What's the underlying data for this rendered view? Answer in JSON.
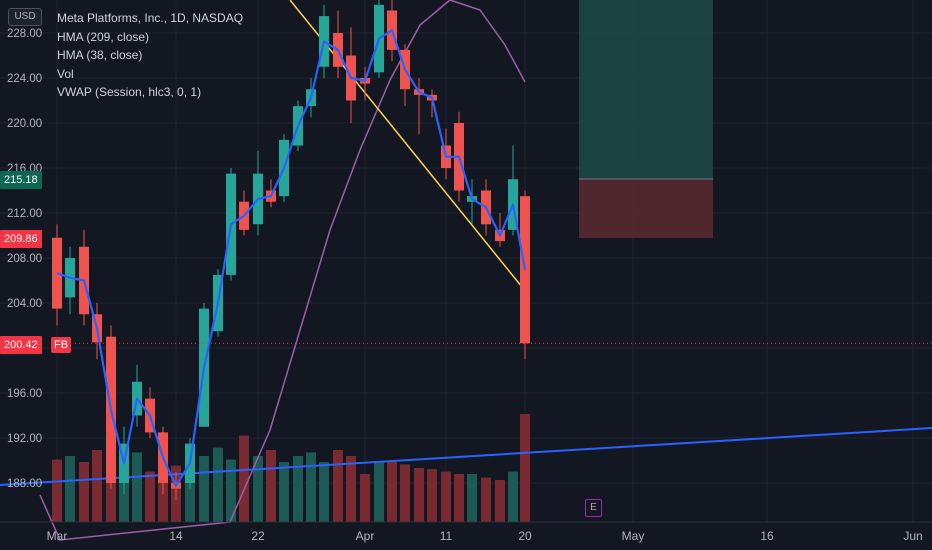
{
  "legend": {
    "title": "Meta Platforms, Inc., 1D, NASDAQ",
    "hma209": "HMA (209, close)",
    "hma38": "HMA (38, close)",
    "vol": "Vol",
    "vwap": "VWAP (Session, hlc3, 0, 1)"
  },
  "axis": {
    "currency": "USD",
    "y_ticks": [
      "228.00",
      "224.00",
      "220.00",
      "216.00",
      "212.00",
      "208.00",
      "204.00",
      "200.00",
      "196.00",
      "192.00",
      "188.00"
    ],
    "x_ticks": [
      "Mar",
      "14",
      "22",
      "Apr",
      "11",
      "20",
      "May",
      "16",
      "Jun"
    ]
  },
  "price_tags": {
    "hma_value": "215.18",
    "hma_color": "#0e6655",
    "prev_value": "209.86",
    "prev_color": "#f23645",
    "last_value": "200.42",
    "last_color": "#f23645",
    "symbol_tag": "FB"
  },
  "earnings_marker": "E",
  "colors": {
    "up": "#26a69a",
    "down": "#ef5350",
    "hma209": "#9c5fa8",
    "hma38": "#2962ff",
    "trendline": "#ffd54f",
    "vwap": "#2962ff"
  },
  "chart_data": {
    "type": "candlestick",
    "ylim": [
      186,
      231
    ],
    "candles": [
      {
        "date": "Mar 1",
        "o": 209.8,
        "h": 211.0,
        "l": 202.0,
        "c": 203.5
      },
      {
        "date": "Mar 2",
        "o": 204.5,
        "h": 209.0,
        "l": 203.0,
        "c": 208.0
      },
      {
        "date": "Mar 3",
        "o": 209.0,
        "h": 210.5,
        "l": 202.0,
        "c": 203.0
      },
      {
        "date": "Mar 4",
        "o": 203.0,
        "h": 204.0,
        "l": 199.0,
        "c": 200.5
      },
      {
        "date": "Mar 7",
        "o": 201.0,
        "h": 202.0,
        "l": 187.5,
        "c": 188.0
      },
      {
        "date": "Mar 8",
        "o": 188.0,
        "h": 193.0,
        "l": 187.0,
        "c": 191.5
      },
      {
        "date": "Mar 9",
        "o": 194.0,
        "h": 198.5,
        "l": 193.0,
        "c": 197.0
      },
      {
        "date": "Mar 10",
        "o": 195.5,
        "h": 196.5,
        "l": 192.0,
        "c": 192.5
      },
      {
        "date": "Mar 11",
        "o": 192.5,
        "h": 193.0,
        "l": 187.0,
        "c": 188.0
      },
      {
        "date": "Mar 14",
        "o": 188.0,
        "h": 189.0,
        "l": 186.5,
        "c": 187.5
      },
      {
        "date": "Mar 15",
        "o": 188.0,
        "h": 192.0,
        "l": 187.5,
        "c": 191.5
      },
      {
        "date": "Mar 16",
        "o": 193.0,
        "h": 204.0,
        "l": 193.0,
        "c": 203.5
      },
      {
        "date": "Mar 17",
        "o": 201.5,
        "h": 207.0,
        "l": 201.0,
        "c": 206.5
      },
      {
        "date": "Mar 18",
        "o": 206.5,
        "h": 216.0,
        "l": 206.0,
        "c": 215.5
      },
      {
        "date": "Mar 21",
        "o": 213.0,
        "h": 214.0,
        "l": 210.0,
        "c": 210.5
      },
      {
        "date": "Mar 22",
        "o": 211.0,
        "h": 217.5,
        "l": 210.0,
        "c": 215.5
      },
      {
        "date": "Mar 23",
        "o": 214.0,
        "h": 215.0,
        "l": 212.5,
        "c": 213.0
      },
      {
        "date": "Mar 24",
        "o": 213.5,
        "h": 219.0,
        "l": 213.0,
        "c": 218.5
      },
      {
        "date": "Mar 25",
        "o": 218.0,
        "h": 222.0,
        "l": 217.5,
        "c": 221.5
      },
      {
        "date": "Mar 28",
        "o": 221.5,
        "h": 224.0,
        "l": 220.5,
        "c": 223.0
      },
      {
        "date": "Mar 29",
        "o": 225.0,
        "h": 230.5,
        "l": 224.0,
        "c": 229.5
      },
      {
        "date": "Mar 30",
        "o": 228.0,
        "h": 230.0,
        "l": 224.0,
        "c": 225.0
      },
      {
        "date": "Mar 31",
        "o": 226.0,
        "h": 228.5,
        "l": 220.0,
        "c": 222.0
      },
      {
        "date": "Apr 1",
        "o": 224.0,
        "h": 225.0,
        "l": 222.0,
        "c": 223.5
      },
      {
        "date": "Apr 4",
        "o": 224.5,
        "h": 231.0,
        "l": 224.0,
        "c": 230.5
      },
      {
        "date": "Apr 5",
        "o": 230.0,
        "h": 231.0,
        "l": 225.5,
        "c": 226.5
      },
      {
        "date": "Apr 6",
        "o": 226.5,
        "h": 227.0,
        "l": 221.5,
        "c": 223.0
      },
      {
        "date": "Apr 7",
        "o": 223.0,
        "h": 224.0,
        "l": 219.0,
        "c": 222.5
      },
      {
        "date": "Apr 8",
        "o": 222.5,
        "h": 223.0,
        "l": 220.5,
        "c": 222.0
      },
      {
        "date": "Apr 11",
        "o": 218.0,
        "h": 219.5,
        "l": 215.0,
        "c": 216.0
      },
      {
        "date": "Apr 12",
        "o": 220.0,
        "h": 221.0,
        "l": 213.0,
        "c": 214.0
      },
      {
        "date": "Apr 13",
        "o": 213.0,
        "h": 215.0,
        "l": 211.0,
        "c": 213.5
      },
      {
        "date": "Apr 14",
        "o": 214.0,
        "h": 215.0,
        "l": 210.0,
        "c": 211.0
      },
      {
        "date": "Apr 18",
        "o": 210.5,
        "h": 212.0,
        "l": 209.0,
        "c": 209.5
      },
      {
        "date": "Apr 19",
        "o": 210.5,
        "h": 218.0,
        "l": 210.0,
        "c": 215.0
      },
      {
        "date": "Apr 20",
        "o": 213.5,
        "h": 214.0,
        "l": 199.0,
        "c": 200.42
      }
    ],
    "volume_relative": [
      0.52,
      0.55,
      0.5,
      0.6,
      0.66,
      0.5,
      0.58,
      0.42,
      0.6,
      0.47,
      0.5,
      0.55,
      0.62,
      0.52,
      0.72,
      0.55,
      0.6,
      0.5,
      0.55,
      0.58,
      0.5,
      0.6,
      0.55,
      0.4,
      0.5,
      0.5,
      0.48,
      0.45,
      0.44,
      0.42,
      0.4,
      0.4,
      0.37,
      0.35,
      0.42,
      0.9
    ]
  }
}
